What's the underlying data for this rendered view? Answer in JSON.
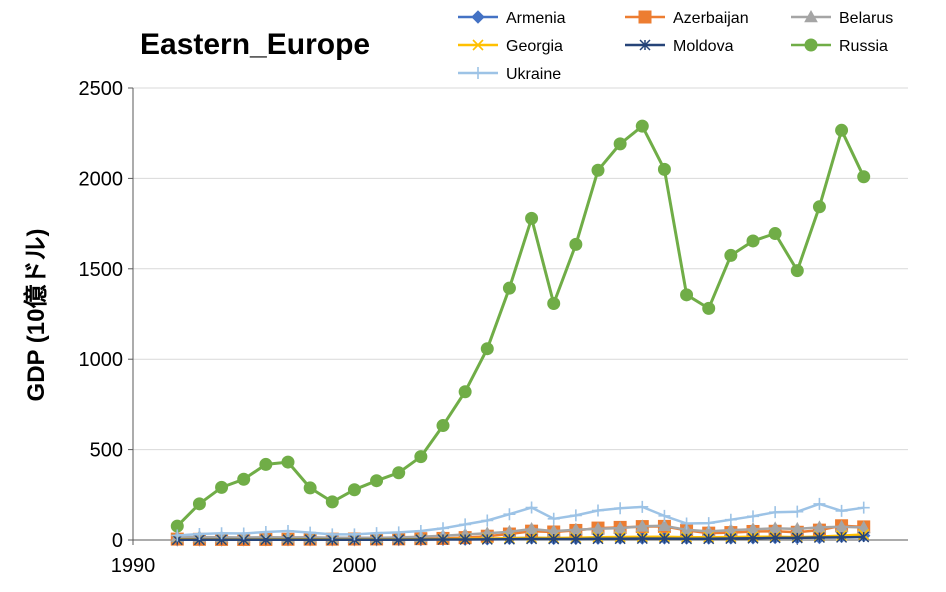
{
  "chart_data": {
    "type": "line",
    "title": "Eastern_Europe",
    "ylabel": "GDP (10億ドル)",
    "xlabel": "",
    "xlim": [
      1990,
      2025
    ],
    "ylim": [
      0,
      2500
    ],
    "x_ticks": [
      1990,
      2000,
      2010,
      2020
    ],
    "y_ticks": [
      0,
      500,
      1000,
      1500,
      2000,
      2500
    ],
    "grid": "horizontal",
    "legend_position": "top-right",
    "x": [
      1992,
      1993,
      1994,
      1995,
      1996,
      1997,
      1998,
      1999,
      2000,
      2001,
      2002,
      2003,
      2004,
      2005,
      2006,
      2007,
      2008,
      2009,
      2010,
      2011,
      2012,
      2013,
      2014,
      2015,
      2016,
      2017,
      2018,
      2019,
      2020,
      2021,
      2022,
      2023
    ],
    "series": [
      {
        "name": "Armenia",
        "color": "#4472C4",
        "marker": "diamond",
        "values": [
          1.3,
          1.2,
          1.3,
          1.5,
          1.6,
          1.6,
          1.9,
          1.8,
          1.9,
          2.1,
          2.4,
          2.8,
          3.6,
          4.9,
          6.4,
          9.2,
          11.7,
          8.6,
          9.3,
          10.1,
          10.6,
          11.1,
          11.6,
          10.6,
          10.5,
          11.5,
          12.5,
          13.6,
          12.6,
          13.9,
          19.5,
          24.2
        ]
      },
      {
        "name": "Azerbaijan",
        "color": "#ED7D31",
        "marker": "square",
        "values": [
          5,
          3.8,
          3.3,
          3.1,
          3.2,
          4,
          4.4,
          4.6,
          5.3,
          5.7,
          6.2,
          7.3,
          8.7,
          13.2,
          21,
          33,
          48.9,
          44.3,
          52.9,
          65.9,
          69.7,
          74.2,
          75.2,
          53.1,
          37.9,
          41,
          47.1,
          48.2,
          42.7,
          54.6,
          78.7,
          72.4
        ]
      },
      {
        "name": "Belarus",
        "color": "#A5A5A5",
        "marker": "triangle",
        "values": [
          17,
          16.3,
          15.6,
          13.9,
          14.9,
          14.3,
          15.2,
          12.1,
          12.7,
          12.4,
          14.6,
          17.8,
          23.1,
          30.2,
          36.9,
          45.3,
          60.8,
          49.2,
          57.2,
          61.8,
          65.7,
          75.5,
          78.8,
          56.5,
          47.7,
          54.7,
          60,
          64.4,
          61.4,
          69.6,
          73,
          68.9
        ]
      },
      {
        "name": "Georgia",
        "color": "#FFC000",
        "marker": "x",
        "values": [
          3.7,
          2.7,
          2.5,
          2.7,
          3.1,
          3.5,
          3.6,
          2.8,
          3,
          3.2,
          3.4,
          4,
          5.1,
          6.4,
          7.8,
          10.2,
          12.8,
          10.8,
          12.2,
          15.1,
          16.5,
          17.2,
          17.6,
          15,
          15.1,
          16.2,
          17.6,
          17.5,
          15.8,
          18.7,
          24.6,
          30.5
        ]
      },
      {
        "name": "Moldova",
        "color": "#264478",
        "marker": "asterisk",
        "values": [
          1.7,
          1.5,
          1.5,
          1.4,
          1.7,
          1.9,
          1.7,
          1.2,
          1.3,
          1.5,
          1.7,
          2,
          2.6,
          3,
          3.4,
          4.4,
          6.1,
          5.4,
          5.8,
          7,
          7.3,
          8,
          8,
          6.5,
          6.8,
          8.1,
          9.5,
          11.7,
          11.5,
          13.7,
          14.5,
          16.5
        ]
      },
      {
        "name": "Russia",
        "color": "#70AD47",
        "marker": "circle",
        "values": [
          77,
          200,
          291,
          336,
          418,
          431,
          288,
          211,
          278,
          328,
          372,
          461,
          633,
          820,
          1058,
          1393,
          1779,
          1308,
          1635,
          2045,
          2191,
          2289,
          2050,
          1356,
          1281,
          1574,
          1654,
          1695,
          1490,
          1843,
          2266,
          2009
        ]
      },
      {
        "name": "Ukraine",
        "color": "#9DC3E6",
        "marker": "plus",
        "values": [
          25,
          33,
          37,
          36,
          44,
          50,
          41,
          31,
          31,
          38,
          42,
          50,
          64.9,
          86.1,
          107.8,
          142.7,
          179.8,
          117.2,
          136,
          163.2,
          175.7,
          183.3,
          133.5,
          91,
          93.3,
          112.2,
          130.9,
          153.9,
          156.6,
          199.8,
          161,
          178.8
        ]
      }
    ]
  }
}
